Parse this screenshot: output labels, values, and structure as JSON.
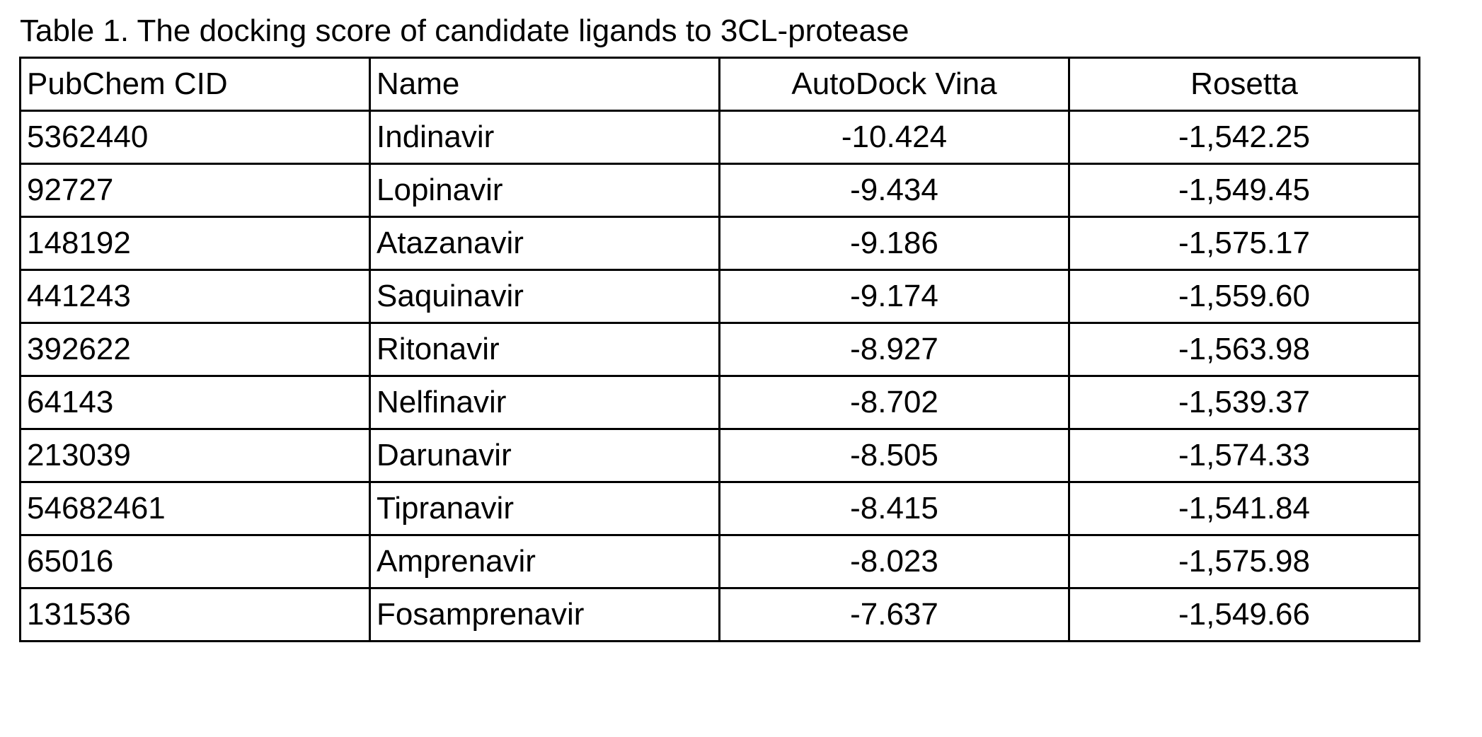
{
  "caption": "Table 1. The docking score of candidate ligands to 3CL-protease",
  "table": {
    "headers": [
      "PubChem CID",
      "Name",
      "AutoDock Vina",
      "Rosetta"
    ],
    "rows": [
      [
        "5362440",
        "Indinavir",
        "-10.424",
        "-1,542.25"
      ],
      [
        "92727",
        "Lopinavir",
        "-9.434",
        "-1,549.45"
      ],
      [
        "148192",
        "Atazanavir",
        "-9.186",
        "-1,575.17"
      ],
      [
        "441243",
        "Saquinavir",
        "-9.174",
        "-1,559.60"
      ],
      [
        "392622",
        "Ritonavir",
        "-8.927",
        "-1,563.98"
      ],
      [
        "64143",
        "Nelfinavir",
        "-8.702",
        "-1,539.37"
      ],
      [
        "213039",
        "Darunavir",
        "-8.505",
        "-1,574.33"
      ],
      [
        "54682461",
        "Tipranavir",
        "-8.415",
        "-1,541.84"
      ],
      [
        "65016",
        "Amprenavir",
        "-8.023",
        "-1,575.98"
      ],
      [
        "131536",
        "Fosamprenavir",
        "-7.637",
        "-1,549.66"
      ]
    ]
  }
}
